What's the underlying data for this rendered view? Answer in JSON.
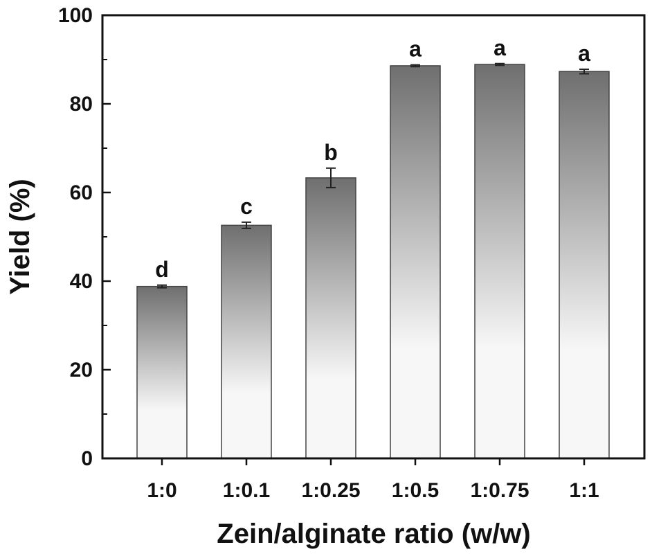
{
  "chart_data": {
    "type": "bar",
    "xlabel": "Zein/alginate ratio (w/w)",
    "ylabel": "Yield (%)",
    "ylim": [
      0,
      100
    ],
    "yticks": [
      0,
      20,
      40,
      60,
      80,
      100
    ],
    "categories": [
      "1:0",
      "1:0.1",
      "1:0.25",
      "1:0.5",
      "1:0.75",
      "1:1"
    ],
    "series": [
      {
        "values": [
          38.8,
          52.6,
          63.3,
          88.6,
          88.9,
          87.3
        ],
        "errors": [
          0.3,
          0.7,
          2.2,
          0.2,
          0.2,
          0.5
        ],
        "significance": [
          "d",
          "c",
          "b",
          "a",
          "a",
          "a"
        ]
      }
    ],
    "bar_gradient": [
      "#6f6f6f",
      "#f7f7f7"
    ],
    "grid": false
  }
}
